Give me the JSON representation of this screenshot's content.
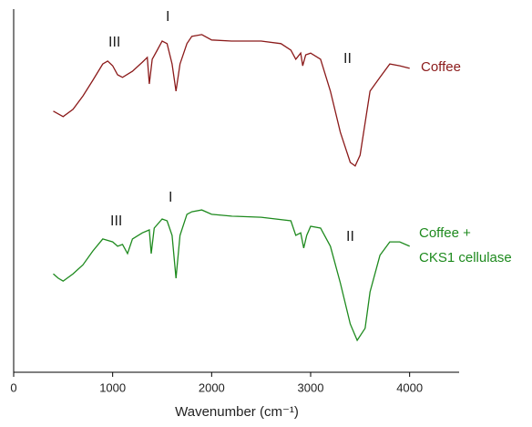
{
  "chart_data": {
    "type": "line",
    "xlabel": "Wavenumber (cm⁻¹)",
    "xlim": [
      0,
      4500
    ],
    "xticks": [
      0,
      1000,
      2000,
      3000,
      4000
    ],
    "ylim": [
      0,
      100
    ],
    "annotations": [
      "III",
      "I",
      "II",
      "III",
      "I",
      "II"
    ],
    "series": [
      {
        "name": "Coffee",
        "color": "#8b1a1a",
        "x": [
          400,
          500,
          600,
          700,
          800,
          900,
          950,
          1000,
          1050,
          1100,
          1200,
          1300,
          1350,
          1370,
          1400,
          1450,
          1500,
          1550,
          1600,
          1640,
          1680,
          1750,
          1800,
          1900,
          2000,
          2200,
          2500,
          2700,
          2800,
          2850,
          2900,
          2920,
          2950,
          3000,
          3100,
          3200,
          3300,
          3400,
          3450,
          3500,
          3600,
          3700,
          3800,
          3900,
          4000
        ],
        "values": [
          71.9,
          70.4,
          72.4,
          76.1,
          80.4,
          84.9,
          85.7,
          84.4,
          81.9,
          81.2,
          82.9,
          85.4,
          86.7,
          79.4,
          86.2,
          88.7,
          91.2,
          90.5,
          84.9,
          77.4,
          84.9,
          90.5,
          92.5,
          93.0,
          91.5,
          91.2,
          91.2,
          90.5,
          88.7,
          86.2,
          87.9,
          84.4,
          87.4,
          87.9,
          86.2,
          77.4,
          66.1,
          57.8,
          56.8,
          59.8,
          77.4,
          81.2,
          84.9,
          84.4,
          83.7
        ]
      },
      {
        "name": "Coffee +\nCKS1 cellulase",
        "color": "#1e8a1e",
        "x": [
          400,
          450,
          500,
          600,
          700,
          800,
          900,
          1000,
          1050,
          1100,
          1150,
          1200,
          1300,
          1370,
          1390,
          1420,
          1500,
          1550,
          1600,
          1640,
          1680,
          1750,
          1800,
          1900,
          2000,
          2200,
          2500,
          2800,
          2850,
          2900,
          2930,
          2960,
          3000,
          3100,
          3200,
          3300,
          3400,
          3470,
          3550,
          3600,
          3700,
          3800,
          3900,
          4000
        ],
        "values": [
          27.1,
          25.9,
          25.1,
          27.1,
          29.6,
          33.4,
          36.7,
          35.9,
          34.7,
          35.2,
          32.7,
          36.7,
          38.4,
          39.2,
          32.7,
          39.7,
          42.2,
          41.7,
          37.7,
          25.9,
          37.7,
          43.5,
          44.2,
          44.7,
          43.5,
          43.0,
          42.7,
          41.7,
          37.7,
          38.4,
          34.2,
          37.7,
          40.2,
          39.7,
          34.7,
          24.6,
          13.3,
          8.8,
          12.1,
          22.1,
          32.2,
          35.9,
          35.9,
          34.7
        ]
      }
    ]
  }
}
